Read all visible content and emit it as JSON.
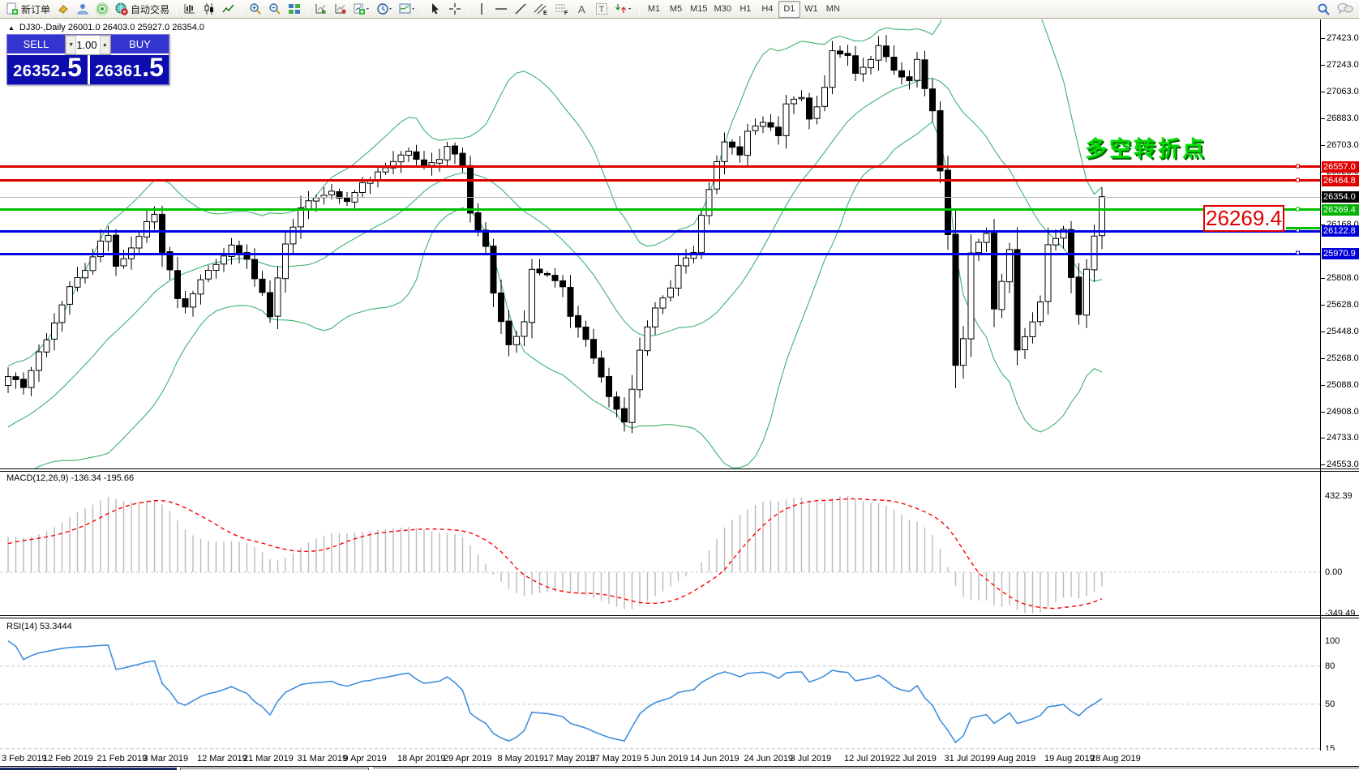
{
  "toolbar": {
    "new_order_label": "新订单",
    "auto_trading_label": "自动交易",
    "timeframes": [
      "M1",
      "M5",
      "M15",
      "M30",
      "H1",
      "H4",
      "D1",
      "W1",
      "MN"
    ],
    "active_timeframe": "D1"
  },
  "window": {
    "title": "DJ30-,Daily  26001.0 26403.0 25927.0 26354.0"
  },
  "trade_panel": {
    "sell_label": "SELL",
    "buy_label": "BUY",
    "volume": "1.00",
    "sell_price_main": "26352",
    "sell_price_frac": ".5",
    "buy_price_main": "26361",
    "buy_price_frac": ".5"
  },
  "annotation_text": "多空转折点",
  "callout_price": "26269.4",
  "price_axis": {
    "plain_ticks": [
      27423.0,
      27243.0,
      27063.0,
      26883.0,
      26703.0,
      26523.0,
      26168.0,
      25808.0,
      25628.0,
      25448.0,
      25268.0,
      25088.0,
      24908.0,
      24733.0,
      24553.0
    ],
    "chips": [
      {
        "label": "26557.0",
        "price": 26557.0,
        "bg": "#e00000"
      },
      {
        "label": "26464.8",
        "price": 26464.8,
        "bg": "#e00000"
      },
      {
        "label": "26354.0",
        "price": 26354.0,
        "bg": "#000000"
      },
      {
        "label": "26269.4",
        "price": 26269.4,
        "bg": "#00b400"
      },
      {
        "label": "26122.8",
        "price": 26122.8,
        "bg": "#0000d8"
      },
      {
        "label": "25970.9",
        "price": 25970.9,
        "bg": "#0000d8"
      }
    ],
    "lines": [
      {
        "price": 26557.0,
        "color": "#e00000",
        "w": 3
      },
      {
        "price": 26464.8,
        "color": "#e00000",
        "w": 3
      },
      {
        "price": 26354.0,
        "color": "#b8b8b8",
        "w": 1
      },
      {
        "price": 26269.4,
        "color": "#00c000",
        "w": 3
      },
      {
        "price": 26122.8,
        "color": "#0000e0",
        "w": 3
      },
      {
        "price": 25970.9,
        "color": "#0000e0",
        "w": 3
      }
    ]
  },
  "macd": {
    "label": "MACD(12,26,9) -136.34 -195.66",
    "scale": [
      "432.39",
      "0.00",
      "-349.49"
    ]
  },
  "rsi": {
    "label": "RSI(14) 53.3444",
    "scale": [
      "100",
      "80",
      "50",
      "15",
      "0"
    ],
    "levels": [
      80,
      50,
      15
    ]
  },
  "time_axis": {
    "labels": [
      "3 Feb 2019",
      "12 Feb 2019",
      "21 Feb 2019",
      "3 Mar 2019",
      "12 Mar 2019",
      "21 Mar 2019",
      "31 Mar 2019",
      "9 Apr 2019",
      "18 Apr 2019",
      "29 Apr 2019",
      "8 May 2019",
      "17 May 2019",
      "27 May 2019",
      "5 Jun 2019",
      "14 Jun 2019",
      "24 Jun 2019",
      "3 Jul 2019",
      "12 Jul 2019",
      "22 Jul 2019",
      "31 Jul 2019",
      "9 Aug 2019",
      "19 Aug 2019",
      "28 Aug 2019"
    ]
  },
  "chart_data": {
    "type": "candlestick",
    "symbol": "DJ30-",
    "timeframe": "Daily",
    "ohlc_today": {
      "open": 26001.0,
      "high": 26403.0,
      "low": 25927.0,
      "close": 26354.0
    },
    "indicators": [
      "Bollinger Bands (green)",
      "MACD(12,26,9)",
      "RSI(14)"
    ],
    "close_anchors": [
      [
        -20,
        24450
      ],
      [
        -12,
        24700
      ],
      [
        -6,
        24950
      ],
      [
        -1,
        25100
      ],
      [
        0,
        25150
      ],
      [
        2,
        25080
      ],
      [
        4,
        25300
      ],
      [
        6,
        25500
      ],
      [
        8,
        25750
      ],
      [
        10,
        25850
      ],
      [
        12,
        26050
      ],
      [
        13,
        26100
      ],
      [
        14,
        25880
      ],
      [
        16,
        26000
      ],
      [
        18,
        26180
      ],
      [
        19,
        26230
      ],
      [
        20,
        25990
      ],
      [
        21,
        25850
      ],
      [
        22,
        25660
      ],
      [
        23,
        25610
      ],
      [
        25,
        25800
      ],
      [
        27,
        25900
      ],
      [
        29,
        26040
      ],
      [
        31,
        25930
      ],
      [
        33,
        25700
      ],
      [
        34,
        25550
      ],
      [
        36,
        26040
      ],
      [
        38,
        26290
      ],
      [
        40,
        26345
      ],
      [
        42,
        26400
      ],
      [
        44,
        26315
      ],
      [
        46,
        26450
      ],
      [
        48,
        26510
      ],
      [
        50,
        26590
      ],
      [
        52,
        26670
      ],
      [
        54,
        26560
      ],
      [
        56,
        26615
      ],
      [
        57,
        26700
      ],
      [
        59,
        26560
      ],
      [
        60,
        26235
      ],
      [
        62,
        26015
      ],
      [
        63,
        25700
      ],
      [
        65,
        25350
      ],
      [
        67,
        25500
      ],
      [
        68,
        25880
      ],
      [
        70,
        25825
      ],
      [
        72,
        25740
      ],
      [
        73,
        25550
      ],
      [
        75,
        25390
      ],
      [
        76,
        25280
      ],
      [
        78,
        25000
      ],
      [
        80,
        24840
      ],
      [
        81,
        25060
      ],
      [
        82,
        25335
      ],
      [
        84,
        25600
      ],
      [
        86,
        25740
      ],
      [
        87,
        25880
      ],
      [
        89,
        25990
      ],
      [
        90,
        26235
      ],
      [
        92,
        26590
      ],
      [
        93,
        26725
      ],
      [
        95,
        26645
      ],
      [
        96,
        26810
      ],
      [
        98,
        26865
      ],
      [
        100,
        26755
      ],
      [
        101,
        26975
      ],
      [
        103,
        27030
      ],
      [
        104,
        26865
      ],
      [
        106,
        27080
      ],
      [
        107,
        27350
      ],
      [
        109,
        27300
      ],
      [
        110,
        27190
      ],
      [
        112,
        27270
      ],
      [
        113,
        27380
      ],
      [
        115,
        27215
      ],
      [
        117,
        27135
      ],
      [
        118,
        27270
      ],
      [
        120,
        26920
      ],
      [
        121,
        26535
      ],
      [
        122,
        26100
      ],
      [
        123,
        25230
      ],
      [
        124,
        25390
      ],
      [
        125,
        25990
      ],
      [
        127,
        26100
      ],
      [
        128,
        25600
      ],
      [
        130,
        25990
      ],
      [
        131,
        25335
      ],
      [
        133,
        25500
      ],
      [
        134,
        25660
      ],
      [
        135,
        26040
      ],
      [
        137,
        26125
      ],
      [
        138,
        25825
      ],
      [
        139,
        25550
      ],
      [
        140,
        25880
      ],
      [
        141,
        26100
      ],
      [
        142,
        26354
      ]
    ]
  }
}
